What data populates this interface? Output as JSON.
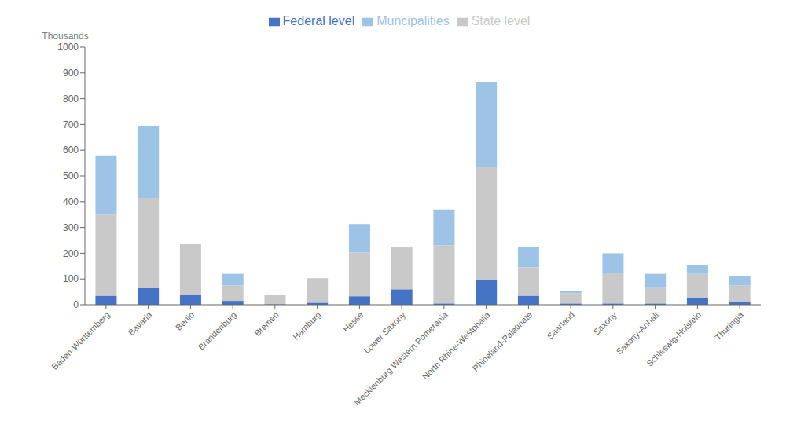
{
  "chart_data": {
    "type": "bar",
    "stacked": true,
    "ylabel": "Thousands",
    "categories": [
      "Baden-Württemberg",
      "Bavaria",
      "Berlin",
      "Brandenburg",
      "Bremen",
      "Hamburg",
      "Hesse",
      "Lower Saxony",
      "Mecklenburg Western Pomerania",
      "North Rhine-Westphalia",
      "Rhineland-Palatinate",
      "Saarland",
      "Saxony",
      "Saxony-Anhalt",
      "Schleswig-Holstein",
      "Thuringia"
    ],
    "series": [
      {
        "name": "Federal level",
        "color": "#4472C4",
        "values": [
          35,
          65,
          40,
          15,
          2,
          8,
          33,
          60,
          5,
          95,
          35,
          5,
          5,
          5,
          25,
          10
        ]
      },
      {
        "name": "State level",
        "color": "#C9C9C9",
        "values": [
          315,
          350,
          195,
          60,
          35,
          95,
          170,
          165,
          225,
          440,
          110,
          40,
          120,
          60,
          95,
          65
        ]
      },
      {
        "name": "Muncipalities",
        "color": "#9DC3E6",
        "values": [
          230,
          280,
          0,
          45,
          0,
          0,
          110,
          0,
          140,
          330,
          80,
          10,
          75,
          55,
          35,
          35
        ]
      }
    ],
    "ylim": [
      0,
      1000
    ],
    "yticks": [
      0,
      100,
      200,
      300,
      400,
      500,
      600,
      700,
      800,
      900,
      1000
    ],
    "legend": "top",
    "grid": false
  }
}
